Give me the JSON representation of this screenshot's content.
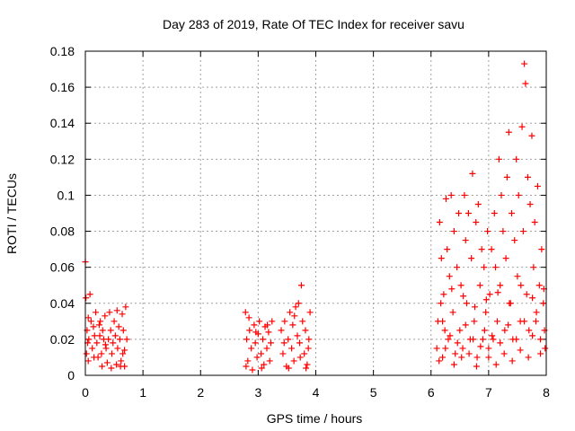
{
  "chart_data": {
    "type": "scatter",
    "title": "Day 283 of 2019, Rate Of TEC Index for receiver savu",
    "xlabel": "GPS time / hours",
    "ylabel": "ROTI / TECUs",
    "xlim": [
      0,
      8
    ],
    "ylim": [
      0,
      0.18
    ],
    "grid": true,
    "legend": "none",
    "marker": "+",
    "series_color": "#ff0000",
    "xticks": [
      {
        "value": 0,
        "label": "0"
      },
      {
        "value": 1,
        "label": "1"
      },
      {
        "value": 2,
        "label": "2"
      },
      {
        "value": 3,
        "label": "3"
      },
      {
        "value": 4,
        "label": "4"
      },
      {
        "value": 5,
        "label": "5"
      },
      {
        "value": 6,
        "label": "6"
      },
      {
        "value": 7,
        "label": "7"
      },
      {
        "value": 8,
        "label": "8"
      }
    ],
    "yticks": [
      {
        "value": 0,
        "label": "0"
      },
      {
        "value": 0.02,
        "label": "0.02"
      },
      {
        "value": 0.04,
        "label": "0.04"
      },
      {
        "value": 0.06,
        "label": "0.06"
      },
      {
        "value": 0.08,
        "label": "0.08"
      },
      {
        "value": 0.1,
        "label": "0.1"
      },
      {
        "value": 0.12,
        "label": "0.12"
      },
      {
        "value": 0.14,
        "label": "0.14"
      },
      {
        "value": 0.16,
        "label": "0.16"
      },
      {
        "value": 0.18,
        "label": "0.18"
      }
    ],
    "series": [
      {
        "name": "ROTI",
        "points": [
          [
            0.0,
            0.063
          ],
          [
            0.01,
            0.043
          ],
          [
            0.02,
            0.012
          ],
          [
            0.03,
            0.025
          ],
          [
            0.04,
            0.018
          ],
          [
            0.05,
            0.008
          ],
          [
            0.06,
            0.02
          ],
          [
            0.08,
            0.045
          ],
          [
            0.1,
            0.03
          ],
          [
            0.12,
            0.015
          ],
          [
            0.14,
            0.027
          ],
          [
            0.16,
            0.022
          ],
          [
            0.18,
            0.035
          ],
          [
            0.2,
            0.018
          ],
          [
            0.22,
            0.01
          ],
          [
            0.24,
            0.028
          ],
          [
            0.26,
            0.03
          ],
          [
            0.28,
            0.012
          ],
          [
            0.3,
            0.025
          ],
          [
            0.32,
            0.02
          ],
          [
            0.34,
            0.033
          ],
          [
            0.36,
            0.015
          ],
          [
            0.38,
            0.007
          ],
          [
            0.4,
            0.02
          ],
          [
            0.42,
            0.035
          ],
          [
            0.44,
            0.025
          ],
          [
            0.46,
            0.012
          ],
          [
            0.48,
            0.018
          ],
          [
            0.5,
            0.03
          ],
          [
            0.52,
            0.022
          ],
          [
            0.54,
            0.006
          ],
          [
            0.56,
            0.015
          ],
          [
            0.58,
            0.027
          ],
          [
            0.6,
            0.02
          ],
          [
            0.62,
            0.008
          ],
          [
            0.64,
            0.034
          ],
          [
            0.66,
            0.025
          ],
          [
            0.68,
            0.014
          ],
          [
            0.7,
            0.038
          ],
          [
            0.72,
            0.02
          ],
          [
            0.29,
            0.005
          ],
          [
            0.45,
            0.004
          ],
          [
            0.61,
            0.005
          ],
          [
            0.55,
            0.036
          ],
          [
            0.35,
            0.017
          ],
          [
            0.25,
            0.022
          ],
          [
            0.15,
            0.01
          ],
          [
            0.05,
            0.032
          ],
          [
            0.65,
            0.012
          ],
          [
            0.68,
            0.005
          ],
          [
            2.78,
            0.035
          ],
          [
            2.8,
            0.02
          ],
          [
            2.82,
            0.008
          ],
          [
            2.85,
            0.025
          ],
          [
            2.88,
            0.015
          ],
          [
            2.9,
            0.003
          ],
          [
            2.93,
            0.028
          ],
          [
            2.95,
            0.018
          ],
          [
            2.98,
            0.01
          ],
          [
            3.0,
            0.023
          ],
          [
            3.02,
            0.03
          ],
          [
            3.05,
            0.012
          ],
          [
            3.08,
            0.02
          ],
          [
            3.1,
            0.006
          ],
          [
            3.12,
            0.027
          ],
          [
            3.15,
            0.015
          ],
          [
            3.18,
            0.024
          ],
          [
            3.2,
            0.008
          ],
          [
            3.22,
            0.018
          ],
          [
            3.24,
            0.03
          ],
          [
            2.79,
            0.005
          ],
          [
            2.84,
            0.032
          ],
          [
            2.96,
            0.024
          ],
          [
            3.06,
            0.004
          ],
          [
            3.16,
            0.028
          ],
          [
            3.4,
            0.025
          ],
          [
            3.43,
            0.012
          ],
          [
            3.46,
            0.03
          ],
          [
            3.49,
            0.005
          ],
          [
            3.52,
            0.02
          ],
          [
            3.55,
            0.035
          ],
          [
            3.58,
            0.015
          ],
          [
            3.6,
            0.028
          ],
          [
            3.62,
            0.008
          ],
          [
            3.65,
            0.038
          ],
          [
            3.68,
            0.022
          ],
          [
            3.7,
            0.04
          ],
          [
            3.72,
            0.018
          ],
          [
            3.75,
            0.05
          ],
          [
            3.77,
            0.03
          ],
          [
            3.8,
            0.012
          ],
          [
            3.82,
            0.025
          ],
          [
            3.85,
            0.006
          ],
          [
            3.88,
            0.02
          ],
          [
            3.9,
            0.035
          ],
          [
            3.45,
            0.018
          ],
          [
            3.53,
            0.004
          ],
          [
            3.63,
            0.033
          ],
          [
            3.73,
            0.01
          ],
          [
            3.83,
            0.004
          ],
          [
            3.87,
            0.015
          ],
          [
            6.1,
            0.015
          ],
          [
            6.12,
            0.03
          ],
          [
            6.15,
            0.085
          ],
          [
            6.18,
            0.065
          ],
          [
            6.2,
            0.01
          ],
          [
            6.22,
            0.045
          ],
          [
            6.24,
            0.025
          ],
          [
            6.26,
            0.098
          ],
          [
            6.28,
            0.07
          ],
          [
            6.3,
            0.02
          ],
          [
            6.32,
            0.055
          ],
          [
            6.35,
            0.1
          ],
          [
            6.38,
            0.035
          ],
          [
            6.4,
            0.08
          ],
          [
            6.42,
            0.012
          ],
          [
            6.45,
            0.06
          ],
          [
            6.48,
            0.09
          ],
          [
            6.5,
            0.025
          ],
          [
            6.52,
            0.05
          ],
          [
            6.55,
            0.015
          ],
          [
            6.58,
            0.1
          ],
          [
            6.6,
            0.075
          ],
          [
            6.62,
            0.04
          ],
          [
            6.65,
            0.09
          ],
          [
            6.68,
            0.02
          ],
          [
            6.7,
            0.065
          ],
          [
            6.72,
            0.112
          ],
          [
            6.75,
            0.03
          ],
          [
            6.78,
            0.085
          ],
          [
            6.8,
            0.01
          ],
          [
            6.82,
            0.095
          ],
          [
            6.85,
            0.05
          ],
          [
            6.88,
            0.07
          ],
          [
            6.9,
            0.02
          ],
          [
            6.92,
            0.06
          ],
          [
            6.95,
            0.035
          ],
          [
            6.98,
            0.08
          ],
          [
            7.0,
            0.015
          ],
          [
            7.02,
            0.045
          ],
          [
            7.05,
            0.07
          ],
          [
            7.08,
            0.02
          ],
          [
            7.1,
            0.09
          ],
          [
            7.12,
            0.06
          ],
          [
            7.15,
            0.03
          ],
          [
            7.18,
            0.12
          ],
          [
            7.2,
            0.05
          ],
          [
            7.22,
            0.1
          ],
          [
            7.25,
            0.08
          ],
          [
            7.28,
            0.025
          ],
          [
            7.3,
            0.065
          ],
          [
            7.32,
            0.11
          ],
          [
            7.35,
            0.135
          ],
          [
            7.38,
            0.04
          ],
          [
            7.4,
            0.09
          ],
          [
            7.42,
            0.02
          ],
          [
            7.45,
            0.075
          ],
          [
            7.48,
            0.12
          ],
          [
            7.5,
            0.055
          ],
          [
            7.52,
            0.1
          ],
          [
            7.55,
            0.03
          ],
          [
            7.58,
            0.138
          ],
          [
            7.6,
            0.08
          ],
          [
            7.62,
            0.173
          ],
          [
            7.64,
            0.162
          ],
          [
            7.66,
            0.045
          ],
          [
            7.68,
            0.11
          ],
          [
            7.7,
            0.025
          ],
          [
            7.72,
            0.095
          ],
          [
            7.75,
            0.133
          ],
          [
            7.78,
            0.06
          ],
          [
            7.8,
            0.085
          ],
          [
            7.82,
            0.03
          ],
          [
            7.85,
            0.105
          ],
          [
            7.88,
            0.05
          ],
          [
            7.9,
            0.02
          ],
          [
            7.92,
            0.07
          ],
          [
            7.95,
            0.04
          ],
          [
            7.98,
            0.015
          ],
          [
            6.14,
            0.008
          ],
          [
            6.2,
            0.03
          ],
          [
            6.25,
            0.015
          ],
          [
            6.33,
            0.022
          ],
          [
            6.4,
            0.006
          ],
          [
            6.46,
            0.018
          ],
          [
            6.53,
            0.01
          ],
          [
            6.6,
            0.028
          ],
          [
            6.66,
            0.012
          ],
          [
            6.73,
            0.02
          ],
          [
            6.79,
            0.005
          ],
          [
            6.86,
            0.016
          ],
          [
            6.93,
            0.025
          ],
          [
            7.0,
            0.01
          ],
          [
            7.06,
            0.022
          ],
          [
            7.13,
            0.006
          ],
          [
            7.2,
            0.018
          ],
          [
            7.27,
            0.012
          ],
          [
            7.34,
            0.028
          ],
          [
            7.41,
            0.008
          ],
          [
            7.48,
            0.02
          ],
          [
            7.55,
            0.014
          ],
          [
            7.62,
            0.03
          ],
          [
            7.69,
            0.01
          ],
          [
            7.76,
            0.022
          ],
          [
            7.83,
            0.035
          ],
          [
            7.9,
            0.012
          ],
          [
            7.97,
            0.025
          ],
          [
            6.17,
            0.04
          ],
          [
            6.36,
            0.048
          ],
          [
            6.56,
            0.044
          ],
          [
            6.76,
            0.038
          ],
          [
            6.96,
            0.042
          ],
          [
            7.16,
            0.046
          ],
          [
            7.36,
            0.04
          ],
          [
            7.56,
            0.05
          ],
          [
            7.76,
            0.043
          ],
          [
            7.96,
            0.048
          ]
        ]
      }
    ]
  }
}
